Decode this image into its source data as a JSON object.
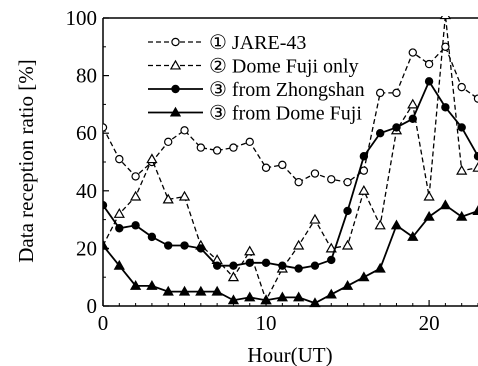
{
  "chart_data": {
    "type": "line",
    "xlabel": "Hour(UT)",
    "ylabel": "Data reception ratio [%]",
    "xlim": [
      0,
      23
    ],
    "ylim": [
      0,
      100
    ],
    "x_ticks": [
      0,
      10,
      20
    ],
    "y_ticks": [
      0,
      20,
      40,
      60,
      80,
      100
    ],
    "x_tick_labels": [
      "0",
      "10",
      "20"
    ],
    "y_tick_labels": [
      "0",
      "20",
      "40",
      "60",
      "80",
      "100"
    ],
    "x": [
      0,
      1,
      2,
      3,
      4,
      5,
      6,
      7,
      8,
      9,
      10,
      11,
      12,
      13,
      14,
      15,
      16,
      17,
      18,
      19,
      20,
      21,
      22,
      23
    ],
    "legend_position": "top-left",
    "series": [
      {
        "name": "① JARE-43",
        "line_style": "dashed",
        "marker": "open-circle",
        "color": "#000000",
        "values": [
          62,
          51,
          45,
          50,
          57,
          61,
          55,
          54,
          55,
          57,
          48,
          49,
          43,
          46,
          44,
          43,
          47,
          74,
          74,
          88,
          84,
          90,
          76,
          72
        ]
      },
      {
        "name": "② Dome Fuji only",
        "line_style": "dashed",
        "marker": "open-triangle",
        "color": "#000000",
        "values": [
          21,
          32,
          38,
          51,
          37,
          38,
          21,
          16,
          10,
          19,
          2,
          13,
          21,
          30,
          20,
          21,
          40,
          28,
          61,
          70,
          38,
          101,
          47,
          48
        ]
      },
      {
        "name": "③ from Zhongshan",
        "line_style": "solid",
        "marker": "filled-circle",
        "color": "#000000",
        "values": [
          35,
          27,
          28,
          24,
          21,
          21,
          20,
          14,
          14,
          15,
          15,
          14,
          13,
          14,
          16,
          33,
          52,
          60,
          62,
          65,
          78,
          69,
          62,
          52
        ]
      },
      {
        "name": "③ from Dome Fuji",
        "line_style": "solid",
        "marker": "filled-triangle",
        "color": "#000000",
        "values": [
          21,
          14,
          7,
          7,
          5,
          5,
          5,
          5,
          2,
          3,
          2,
          3,
          3,
          1,
          4,
          7,
          10,
          13,
          28,
          24,
          31,
          35,
          31,
          33
        ]
      }
    ]
  }
}
